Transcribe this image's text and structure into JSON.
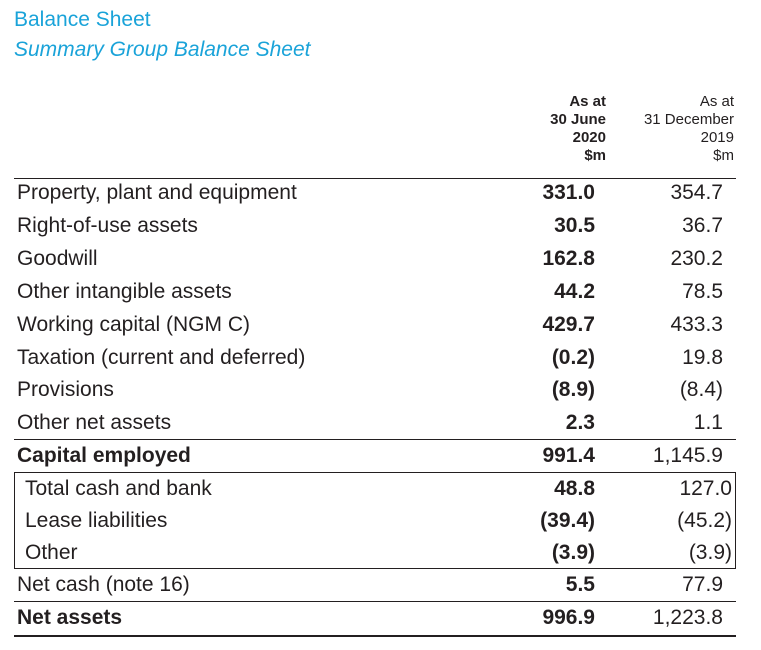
{
  "header": {
    "title": "Balance Sheet",
    "subtitle": "Summary Group Balance Sheet"
  },
  "columns": {
    "current": {
      "line1": "As at",
      "line2": "30 June",
      "line3": "2020",
      "line4": "$m"
    },
    "previous": {
      "line1": "As at",
      "line2": "31 December",
      "line3": "2019",
      "line4": "$m"
    }
  },
  "rows": [
    {
      "label": "Property, plant and equipment",
      "current": "331.0",
      "previous": "354.7"
    },
    {
      "label": "Right-of-use assets",
      "current": "30.5",
      "previous": "36.7"
    },
    {
      "label": "Goodwill",
      "current": "162.8",
      "previous": "230.2"
    },
    {
      "label": "Other intangible assets",
      "current": "44.2",
      "previous": "78.5"
    },
    {
      "label": "Working capital (NGM C)",
      "current": "429.7",
      "previous": "433.3"
    },
    {
      "label": "Taxation (current and deferred)",
      "current": "(0.2)",
      "previous": "19.8"
    },
    {
      "label": "Provisions",
      "current": "(8.9)",
      "previous": "(8.4)"
    },
    {
      "label": "Other net assets",
      "current": "2.3",
      "previous": "1.1"
    },
    {
      "label": "Capital employed",
      "current": "991.4",
      "previous": "1,145.9"
    },
    {
      "label": "Total cash and bank",
      "current": "48.8",
      "previous": "127.0"
    },
    {
      "label": "Lease liabilities",
      "current": "(39.4)",
      "previous": "(45.2)"
    },
    {
      "label": "Other",
      "current": "(3.9)",
      "previous": "(3.9)"
    },
    {
      "label": "Net cash (note 16)",
      "current": "5.5",
      "previous": "77.9"
    },
    {
      "label": "Net assets",
      "current": "996.9",
      "previous": "1,223.8"
    }
  ]
}
